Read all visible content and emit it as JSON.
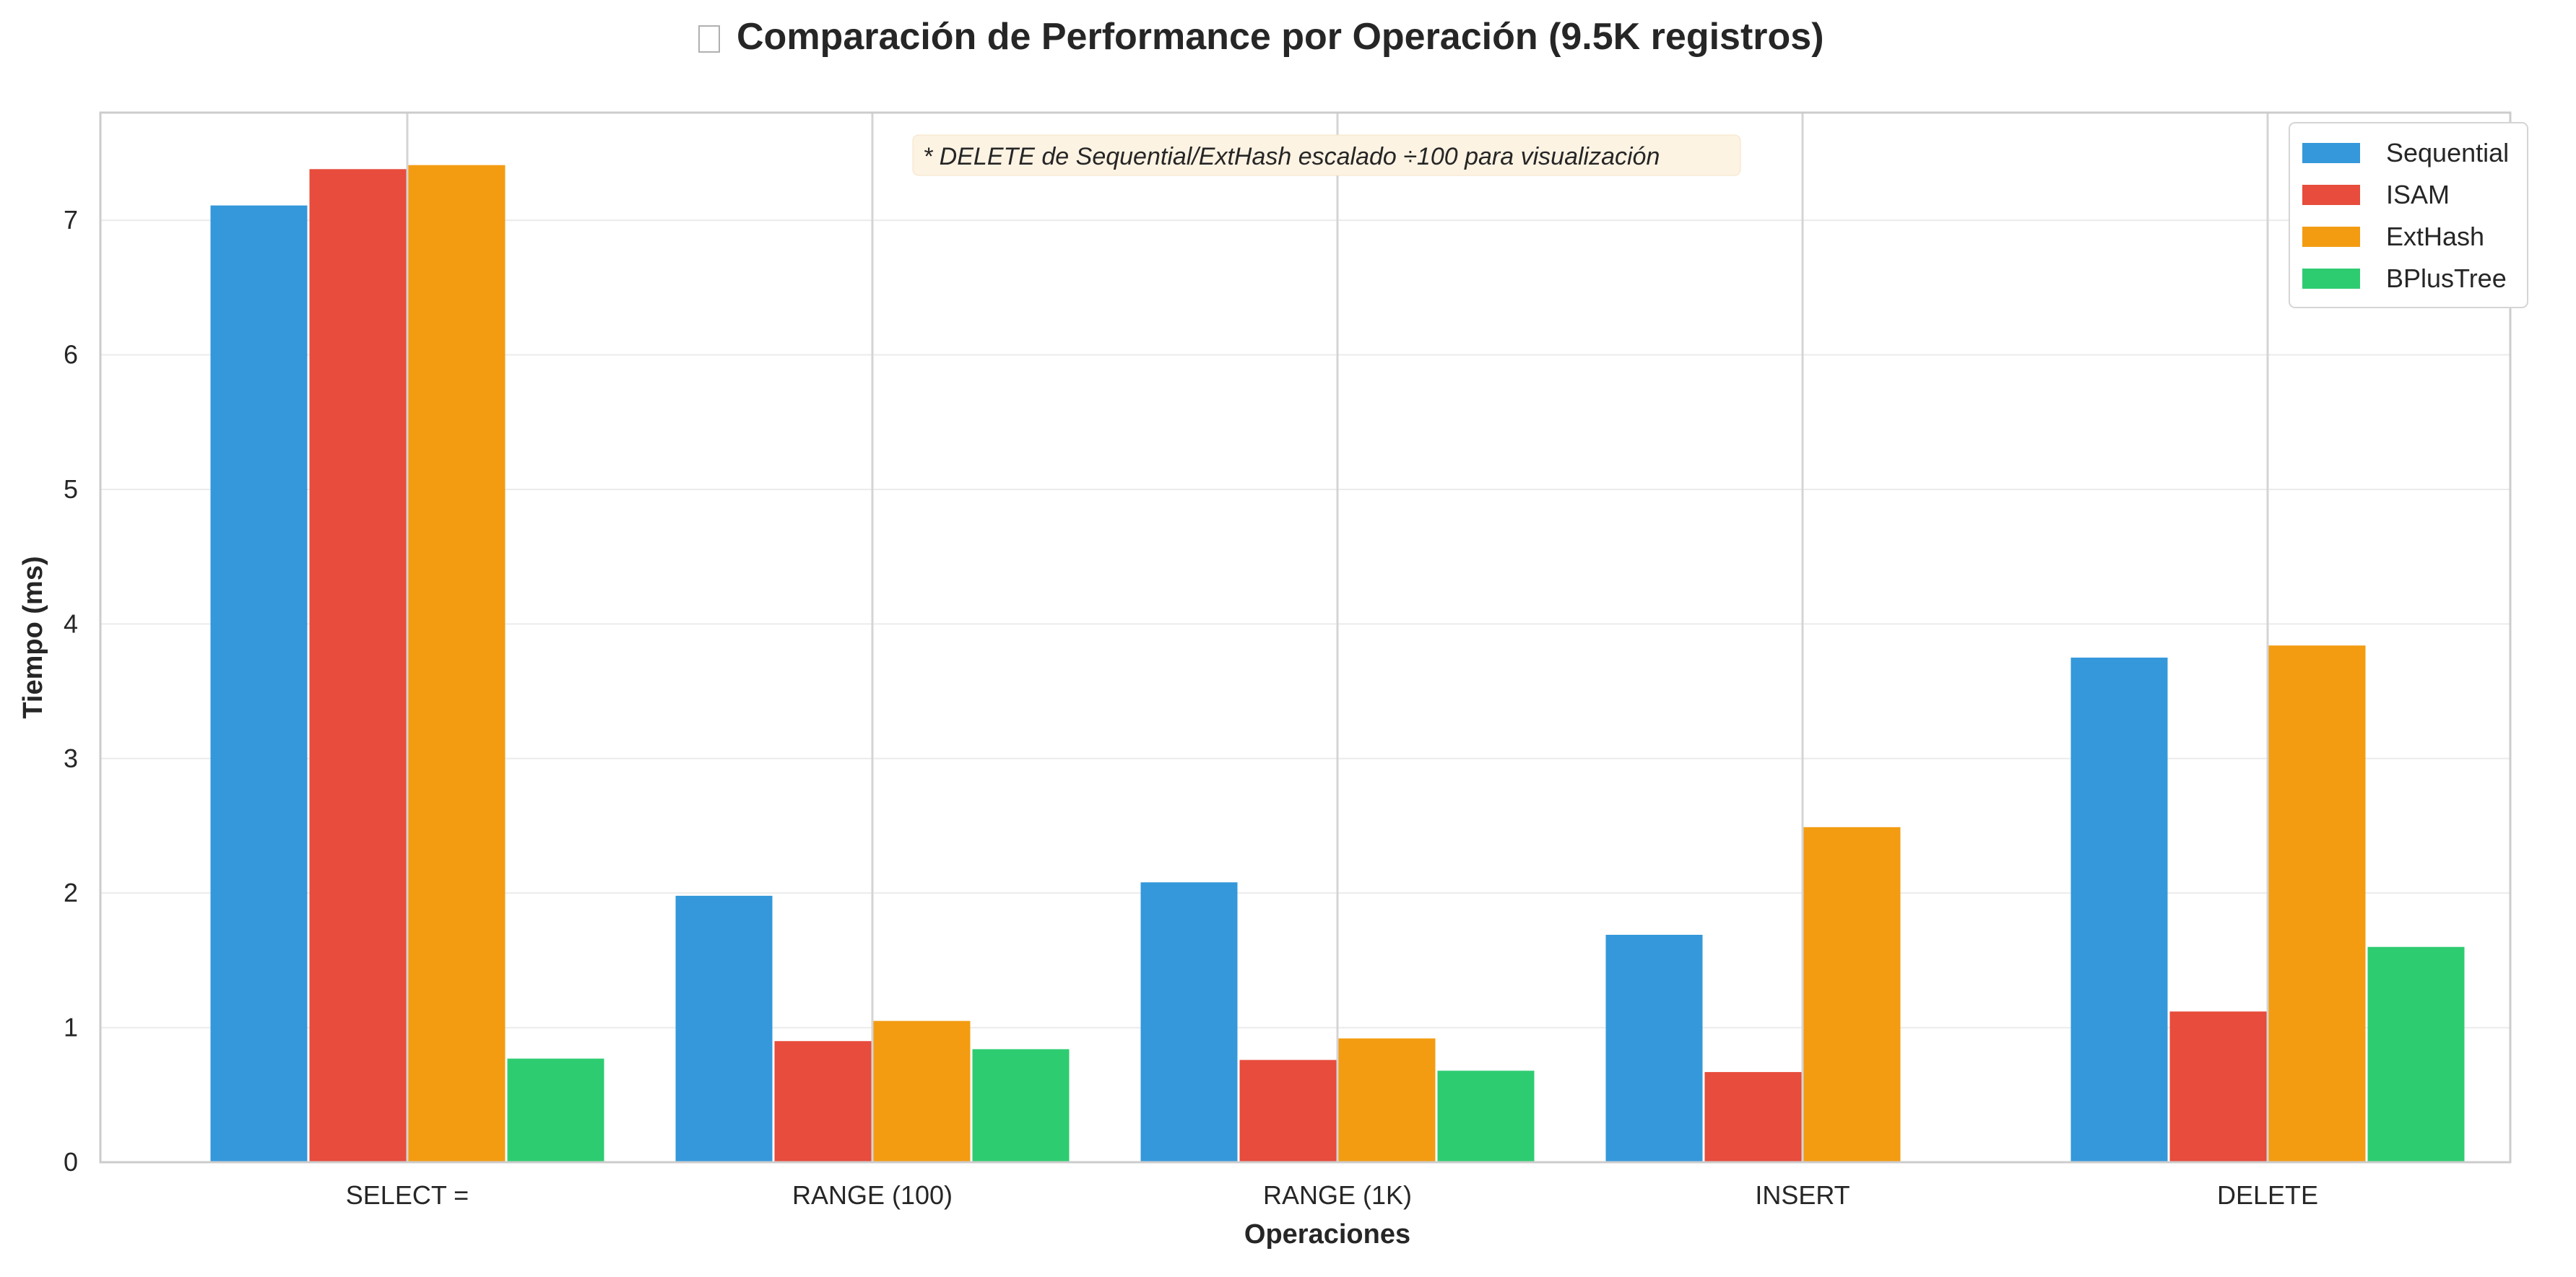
{
  "chart_data": {
    "type": "bar",
    "title": "Comparación de Performance por Operación (9.5K registros)",
    "title_icon": "chart-icon",
    "xlabel": "Operaciones",
    "ylabel": "Tiempo (ms)",
    "categories": [
      "SELECT =",
      "RANGE (100)",
      "RANGE (1K)",
      "INSERT",
      "DELETE"
    ],
    "series": [
      {
        "name": "Sequential",
        "color": "#3498db",
        "values": [
          7.11,
          1.98,
          2.08,
          1.69,
          3.75
        ]
      },
      {
        "name": "ISAM",
        "color": "#e74c3c",
        "values": [
          7.38,
          0.9,
          0.76,
          0.67,
          1.12
        ]
      },
      {
        "name": "ExtHash",
        "color": "#f39c12",
        "values": [
          7.41,
          1.05,
          0.92,
          2.49,
          3.84
        ]
      },
      {
        "name": "BPlusTree",
        "color": "#2ecc71",
        "values": [
          0.77,
          0.84,
          0.68,
          0,
          1.6
        ]
      }
    ],
    "ylim": [
      0,
      7.8
    ],
    "yticks": [
      0,
      1,
      2,
      3,
      4,
      5,
      6,
      7
    ],
    "grid": true,
    "legend_position": "top-right",
    "annotation": "* DELETE de Sequential/ExtHash escalado ÷100 para visualización"
  }
}
